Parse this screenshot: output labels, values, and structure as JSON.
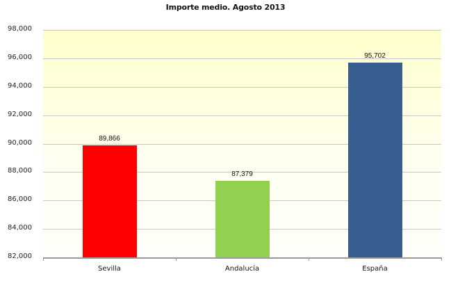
{
  "chart_data": {
    "type": "bar",
    "title": "Importe medio. Agosto 2013",
    "xlabel": "",
    "ylabel": "",
    "categories": [
      "Sevilla",
      "Andalucía",
      "España"
    ],
    "values": [
      89866,
      87379,
      95702
    ],
    "value_labels": [
      "89,866",
      "87,379",
      "95,702"
    ],
    "colors": [
      "#ff0000",
      "#92d050",
      "#375e8f"
    ],
    "ylim": [
      82000,
      98000
    ],
    "yticks": [
      82000,
      84000,
      86000,
      88000,
      90000,
      92000,
      94000,
      96000,
      98000
    ],
    "ytick_labels": [
      "82,000",
      "84,000",
      "86,000",
      "88,000",
      "90,000",
      "92,000",
      "94,000",
      "96,000",
      "98,000"
    ],
    "grid": true,
    "legend": "none",
    "background": "gradient light yellow to white"
  }
}
